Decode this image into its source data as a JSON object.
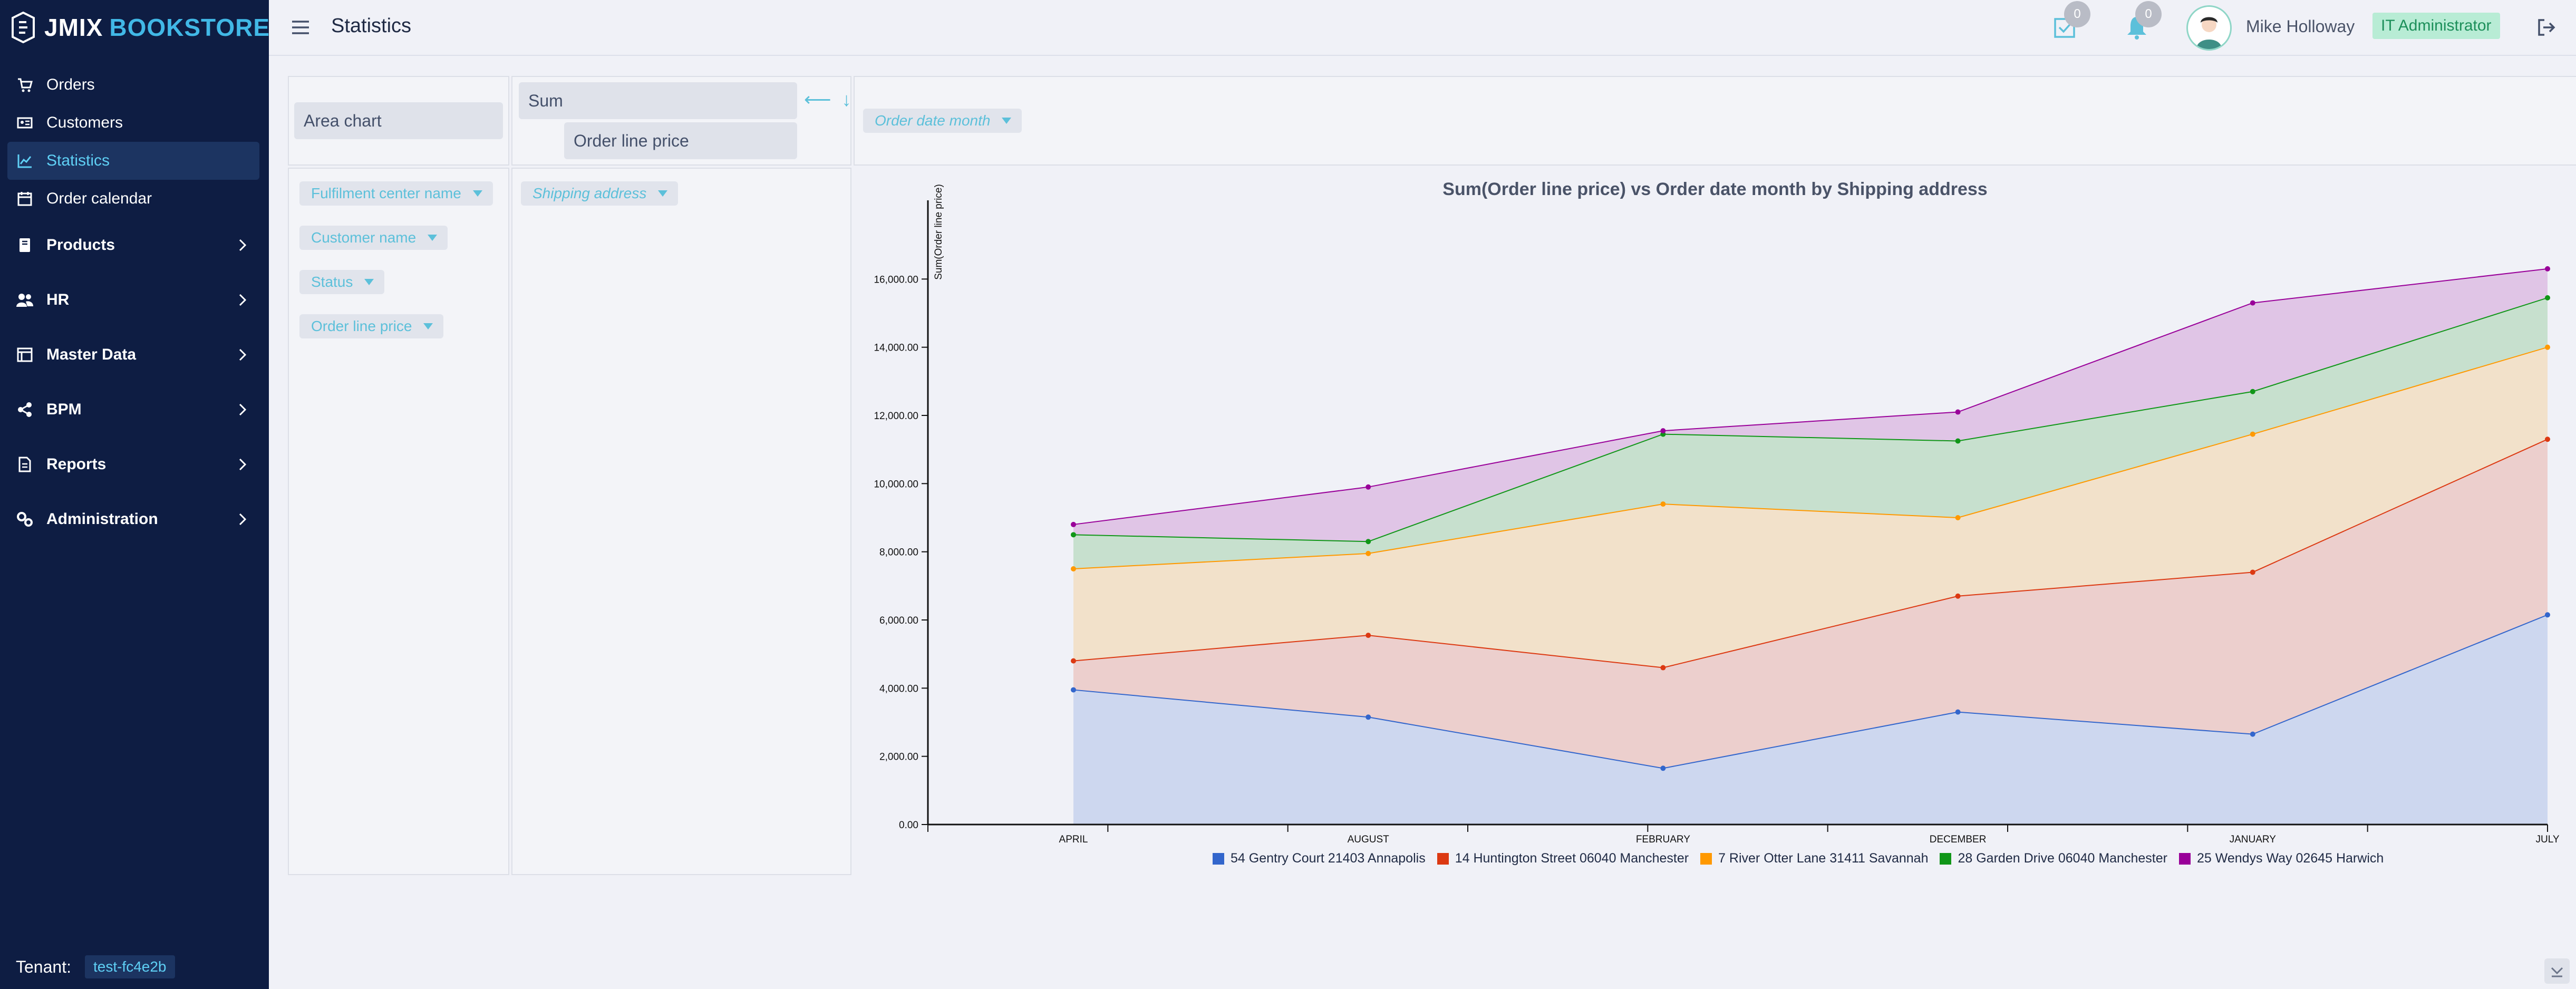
{
  "app": {
    "logo_text_a": "JMIX",
    "logo_text_b": "BOOKSTORE",
    "page_title": "Statistics"
  },
  "sidebar": {
    "items": [
      {
        "label": "Orders",
        "icon": "cart-icon"
      },
      {
        "label": "Customers",
        "icon": "id-card-icon"
      },
      {
        "label": "Statistics",
        "icon": "chart-icon",
        "active": true
      },
      {
        "label": "Order calendar",
        "icon": "calendar-icon"
      }
    ],
    "groups": [
      {
        "label": "Products",
        "icon": "book-icon"
      },
      {
        "label": "HR",
        "icon": "users-icon"
      },
      {
        "label": "Master Data",
        "icon": "table-icon"
      },
      {
        "label": "BPM",
        "icon": "share-icon"
      },
      {
        "label": "Reports",
        "icon": "report-icon"
      },
      {
        "label": "Administration",
        "icon": "gears-icon"
      }
    ],
    "tenant_label": "Tenant:",
    "tenant_value": "test-fc4e2b"
  },
  "topbar": {
    "tasks_count": "0",
    "notifications_count": "0",
    "user_name": "Mike Holloway",
    "role": "IT Administrator"
  },
  "pivot": {
    "renderer": "Area chart",
    "aggregator": "Sum",
    "aggregator_attr": "Order line price",
    "column_attr": "Order date month",
    "row_attr": "Shipping address",
    "unused_attrs": [
      "Fulfilment center name",
      "Customer name",
      "Status",
      "Order line price"
    ]
  },
  "colors": {
    "sidebar_bg": "#0e1d43",
    "accent": "#5cc0da",
    "series": [
      "#3366cc",
      "#dc3912",
      "#ff9900",
      "#109618",
      "#990099"
    ]
  },
  "chart_data": {
    "type": "area",
    "stacked": true,
    "title": "Sum(Order line price) vs Order date month by Shipping address",
    "xlabel": "",
    "ylabel": "Sum(Order line price)",
    "categories": [
      "APRIL",
      "AUGUST",
      "FEBRUARY",
      "DECEMBER",
      "JANUARY",
      "JULY"
    ],
    "ylim": [
      0,
      18000
    ],
    "yticks": [
      "0.00",
      "2,000.00",
      "4,000.00",
      "6,000.00",
      "8,000.00",
      "10,000.00",
      "12,000.00",
      "14,000.00",
      "16,000.00"
    ],
    "series": [
      {
        "name": "54 Gentry Court 21403 Annapolis",
        "values": [
          3950,
          3150,
          1650,
          3300,
          2650,
          6150
        ]
      },
      {
        "name": "14 Huntington Street 06040 Manchester",
        "values": [
          850,
          2400,
          2950,
          3400,
          4750,
          5150
        ]
      },
      {
        "name": "7 River Otter Lane 31411 Savannah",
        "values": [
          2700,
          2400,
          4800,
          2300,
          4050,
          2700
        ]
      },
      {
        "name": "28 Garden Drive 06040 Manchester",
        "values": [
          1000,
          350,
          2050,
          2250,
          1250,
          1450
        ]
      },
      {
        "name": "25 Wendys Way 02645 Harwich",
        "values": [
          300,
          1600,
          100,
          850,
          2600,
          850
        ]
      }
    ],
    "legend_position": "bottom",
    "grid": false
  }
}
